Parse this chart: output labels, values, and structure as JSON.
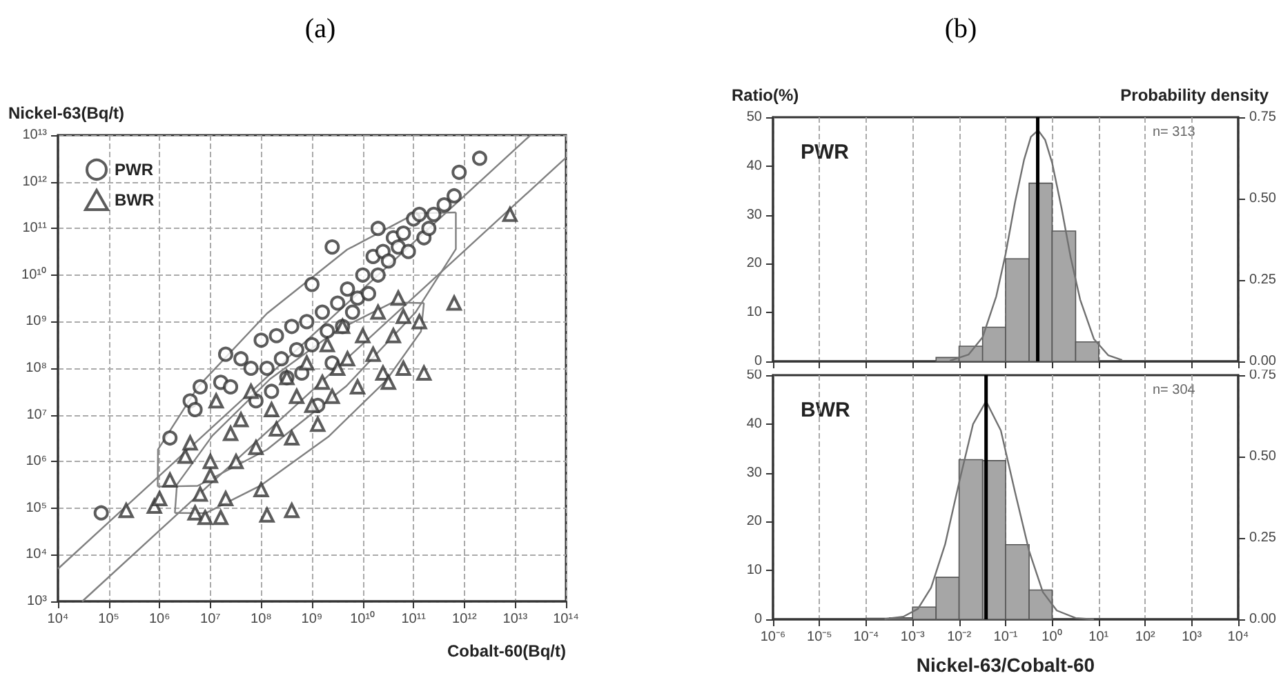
{
  "chart_data": [
    {
      "type": "scatter",
      "title": "(a)",
      "xlabel": "Cobalt-60(Bq/t)",
      "ylabel": "Nickel-63(Bq/t)",
      "log": "xy",
      "grid": true,
      "legend": "top left",
      "xlim": [
        10000.0,
        100000000000000.0
      ],
      "ylim": [
        1000.0,
        10000000000000.0
      ],
      "xticks": [
        {
          "value": 10000.0,
          "label": "10⁴"
        },
        {
          "value": 100000.0,
          "label": "10⁵"
        },
        {
          "value": 1000000.0,
          "label": "10⁶"
        },
        {
          "value": 10000000.0,
          "label": "10⁷"
        },
        {
          "value": 100000000.0,
          "label": "10⁸"
        },
        {
          "value": 1000000000.0,
          "label": "10⁹"
        },
        {
          "value": 10000000000.0,
          "label": "10¹⁰"
        },
        {
          "value": 100000000000.0,
          "label": "10¹¹"
        },
        {
          "value": 1000000000000.0,
          "label": "10¹²"
        },
        {
          "value": 10000000000000.0,
          "label": "10¹³"
        },
        {
          "value": 100000000000000.0,
          "label": "10¹⁴"
        }
      ],
      "yticks": [
        {
          "value": 1000.0,
          "label": "10³"
        },
        {
          "value": 10000.0,
          "label": "10⁴"
        },
        {
          "value": 100000.0,
          "label": "10⁵"
        },
        {
          "value": 1000000.0,
          "label": "10⁶"
        },
        {
          "value": 10000000.0,
          "label": "10⁷"
        },
        {
          "value": 100000000.0,
          "label": "10⁸"
        },
        {
          "value": 1000000000.0,
          "label": "10⁹"
        },
        {
          "value": 10000000000.0,
          "label": "10¹⁰"
        },
        {
          "value": 100000000000.0,
          "label": "10¹¹"
        },
        {
          "value": 1000000000000.0,
          "label": "10¹²"
        },
        {
          "value": 10000000000000.0,
          "label": "10¹³"
        }
      ],
      "series": [
        {
          "name": "PWR",
          "type": "scatter",
          "marker": "circle",
          "color": "#333333",
          "x": [
            71000.0,
            1600000.0,
            4000000.0,
            5000000.0,
            6300000.0,
            16000000.0,
            20000000.0,
            25000000.0,
            40000000.0,
            63000000.0,
            79000000.0,
            100000000.0,
            130000000.0,
            160000000.0,
            200000000.0,
            250000000.0,
            320000000.0,
            400000000.0,
            500000000.0,
            630000000.0,
            790000000.0,
            1000000000.0,
            1300000000.0,
            1600000000.0,
            2000000000.0,
            2500000000.0,
            3200000000.0,
            4000000000.0,
            5000000000.0,
            6300000000.0,
            7900000000.0,
            10000000000.0,
            13000000000.0,
            16000000000.0,
            20000000000.0,
            25000000000.0,
            32000000000.0,
            40000000000.0,
            50000000000.0,
            63000000000.0,
            79000000000.0,
            100000000000.0,
            130000000000.0,
            160000000000.0,
            200000000000.0,
            250000000000.0,
            400000000000.0,
            630000000000.0,
            790000000000.0,
            2000000000000.0,
            1000000000.0,
            20000000000.0,
            2500000000.0
          ],
          "values": [
            79000.0,
            3200000.0,
            20000000.0,
            13000000.0,
            40000000.0,
            50000000.0,
            200000000.0,
            40000000.0,
            160000000.0,
            100000000.0,
            20000000.0,
            400000000.0,
            100000000.0,
            32000000.0,
            500000000.0,
            160000000.0,
            63000000.0,
            790000000.0,
            250000000.0,
            79000000.0,
            1000000000.0,
            320000000.0,
            16000000.0,
            1600000000.0,
            630000000.0,
            130000000.0,
            2500000000.0,
            790000000.0,
            5000000000.0,
            1600000000.0,
            3200000000.0,
            10000000000.0,
            4000000000.0,
            25000000000.0,
            10000000000.0,
            32000000000.0,
            20000000000.0,
            63000000000.0,
            40000000000.0,
            79000000000.0,
            32000000000.0,
            160000000000.0,
            200000000000.0,
            63000000000.0,
            100000000000.0,
            200000000000.0,
            320000000000.0,
            500000000000.0,
            1600000000000.0,
            3200000000000.0,
            6300000000.0,
            100000000000.0,
            40000000000.0
          ]
        },
        {
          "name": "BWR",
          "type": "scatter",
          "marker": "triangle",
          "color": "#333333",
          "x": [
            220000.0,
            790000.0,
            1000000.0,
            1600000.0,
            3200000.0,
            4000000.0,
            5000000.0,
            6300000.0,
            7900000.0,
            10000000.0,
            10000000.0,
            13000000.0,
            16000000.0,
            20000000.0,
            25000000.0,
            32000000.0,
            40000000.0,
            63000000.0,
            79000000.0,
            100000000.0,
            130000000.0,
            160000000.0,
            200000000.0,
            320000000.0,
            400000000.0,
            400000000.0,
            500000000.0,
            790000000.0,
            1000000000.0,
            1300000000.0,
            1600000000.0,
            2000000000.0,
            2500000000.0,
            3200000000.0,
            4000000000.0,
            5000000000.0,
            7900000000.0,
            10000000000.0,
            16000000000.0,
            20000000000.0,
            25000000000.0,
            32000000000.0,
            40000000000.0,
            50000000000.0,
            63000000000.0,
            63000000000.0,
            130000000000.0,
            160000000000.0,
            630000000000.0,
            7900000000000.0
          ],
          "values": [
            89000.0,
            110000.0,
            160000.0,
            400000.0,
            1300000.0,
            2500000.0,
            79000.0,
            200000.0,
            63000.0,
            500000.0,
            1000000.0,
            20000000.0,
            63000.0,
            160000.0,
            4000000.0,
            1000000.0,
            7900000.0,
            32000000.0,
            2000000.0,
            250000.0,
            71000.0,
            13000000.0,
            5000000.0,
            63000000.0,
            89000.0,
            3200000.0,
            25000000.0,
            130000000.0,
            16000000.0,
            6300000.0,
            50000000.0,
            320000000.0,
            25000000.0,
            100000000.0,
            790000000.0,
            160000000.0,
            40000000.0,
            500000000.0,
            200000000.0,
            1600000000.0,
            79000000.0,
            50000000.0,
            500000000.0,
            3200000000.0,
            1300000000.0,
            100000000.0,
            1000000000.0,
            79000000.0,
            2500000000.0,
            200000000000.0
          ]
        },
        {
          "type": "line",
          "marker": "none",
          "color": "#808080",
          "x": [
            10000.0,
            20000000000000.0
          ],
          "values": [
            5000.0,
            10000000000000.0
          ]
        },
        {
          "type": "line",
          "marker": "none",
          "color": "#808080",
          "x": [
            30000.0,
            100000000000000.0
          ],
          "values": [
            1000.0,
            3300000000000.0
          ]
        },
        {
          "type": "line",
          "marker": "none",
          "color": "#808080",
          "x": [
            920000.0,
            930000.0,
            5700000.0,
            130000000.0,
            4900000000.0,
            110000000000.0,
            680000000000.0
          ],
          "values": [
            290000.0,
            1800000.0,
            40000000.0,
            1500000000.0,
            35000000000.0,
            210000000000.0,
            220000000000.0
          ]
        },
        {
          "type": "line",
          "marker": "none",
          "color": "#808080",
          "x": [
            920000.0,
            5600000.0,
            130000000.0,
            4800000000.0,
            110000000000.0,
            680000000000.0,
            680000000000.0
          ],
          "values": [
            290000.0,
            300000.0,
            1800000.0,
            42000000.0,
            1600000000.0,
            36000000000.0,
            220000000000.0
          ]
        },
        {
          "type": "line",
          "marker": "none",
          "color": "#808080",
          "x": [
            2000000.0,
            2200000.0,
            11000000.0,
            150000000.0,
            3100000000.0,
            39000000000.0,
            160000000000.0
          ],
          "values": [
            79000.0,
            320000.0,
            3600000.0,
            59000000.0,
            650000000.0,
            2600000000.0,
            2500000000.0
          ]
        },
        {
          "type": "line",
          "marker": "none",
          "color": "#808080",
          "x": [
            2000000.0,
            8100000.0,
            100000000.0,
            2100000000.0,
            29000000000.0,
            140000000000.0,
            160000000000.0
          ],
          "values": [
            79000.0,
            78000.0,
            310000.0,
            3400000.0,
            55000000.0,
            620000000.0,
            2500000000.0
          ]
        }
      ]
    },
    {
      "type": "histogram",
      "title": "(b)",
      "ylabel": "Ratio(%)",
      "y2label": "Probability density",
      "log": "x",
      "grid": "x",
      "tick_labels": "y",
      "xlim": [
        1e-06,
        10000.0
      ],
      "xticks": [
        {
          "value": 1e-06,
          "label": null
        },
        {
          "value": 1e-05,
          "label": null
        },
        {
          "value": 0.0001,
          "label": null
        },
        {
          "value": 0.001,
          "label": null
        },
        {
          "value": 0.01,
          "label": null
        },
        {
          "value": 0.1,
          "label": null
        },
        {
          "value": 1,
          "label": null
        },
        {
          "value": 10,
          "label": null
        },
        {
          "value": 100,
          "label": null
        },
        {
          "value": 1000,
          "label": null
        },
        {
          "value": 10000,
          "label": null
        }
      ],
      "ylim": [
        0,
        50
      ],
      "yticks": [
        0,
        10,
        20,
        30,
        40,
        50
      ],
      "y2lim": [
        0,
        0.75
      ],
      "y2ticks": [
        {
          "value": 0,
          "label": "0.00"
        },
        {
          "value": 0.25,
          "label": "0.25"
        },
        {
          "value": 0.5,
          "label": "0.50"
        },
        {
          "value": 0.75,
          "label": "0.75"
        }
      ],
      "series": [
        {
          "type": "histogram",
          "color": "#a6a6a6",
          "bins": [
            0.0032,
            0.01,
            0.032,
            0.1,
            0.32,
            1,
            3.2,
            10
          ],
          "values": [
            0.8,
            3.1,
            7.0,
            21.0,
            36.5,
            26.7,
            4.0
          ]
        },
        {
          "type": "line",
          "axis": "y2",
          "marker": "none",
          "color": "#707070",
          "x": [
            0.0063,
            0.016,
            0.032,
            0.063,
            0.1,
            0.16,
            0.25,
            0.35,
            0.5,
            0.71,
            1,
            1.6,
            2.5,
            4.0,
            7.9,
            16,
            32
          ],
          "values": [
            0.002,
            0.021,
            0.074,
            0.2,
            0.33,
            0.49,
            0.62,
            0.69,
            0.71,
            0.68,
            0.61,
            0.47,
            0.32,
            0.19,
            0.069,
            0.019,
            0.004
          ]
        }
      ],
      "ref_lines": [
        {
          "axis": "x",
          "value": 0.49,
          "color": "#000000"
        }
      ],
      "annotations": [
        "PWR",
        "n= 313"
      ]
    },
    {
      "type": "histogram",
      "xlabel": "Nickel-63/Cobalt-60",
      "log": "x",
      "grid": "x",
      "xlim": [
        1e-06,
        10000.0
      ],
      "xticks": [
        {
          "value": 1e-06,
          "label": "10⁻⁶"
        },
        {
          "value": 1e-05,
          "label": "10⁻⁵"
        },
        {
          "value": 0.0001,
          "label": "10⁻⁴"
        },
        {
          "value": 0.001,
          "label": "10⁻³"
        },
        {
          "value": 0.01,
          "label": "10⁻²"
        },
        {
          "value": 0.1,
          "label": "10⁻¹"
        },
        {
          "value": 1,
          "label": "10⁰"
        },
        {
          "value": 10,
          "label": "10¹"
        },
        {
          "value": 100,
          "label": "10²"
        },
        {
          "value": 1000,
          "label": "10³"
        },
        {
          "value": 10000,
          "label": "10⁴"
        }
      ],
      "ylim": [
        0,
        50
      ],
      "yticks": [
        0,
        10,
        20,
        30,
        40,
        50
      ],
      "y2lim": [
        0,
        0.75
      ],
      "y2ticks": [
        {
          "value": 0,
          "label": "0.00"
        },
        {
          "value": 0.25,
          "label": "0.25"
        },
        {
          "value": 0.5,
          "label": "0.50"
        },
        {
          "value": 0.75,
          "label": "0.75"
        }
      ],
      "series": [
        {
          "type": "histogram",
          "color": "#a6a6a6",
          "bins": [
            0.0001,
            0.00032,
            0.001,
            0.0032,
            0.01,
            0.032,
            0.1,
            0.32,
            1
          ],
          "values": [
            0.2,
            0.3,
            2.5,
            8.6,
            32.7,
            32.5,
            15.3,
            6.0
          ]
        },
        {
          "type": "line",
          "axis": "y2",
          "marker": "none",
          "color": "#707070",
          "x": [
            0.00025,
            0.00063,
            0.0013,
            0.0025,
            0.005,
            0.01,
            0.02,
            0.038,
            0.079,
            0.16,
            0.32,
            0.63,
            1.26,
            3.2,
            7.9
          ],
          "values": [
            0.001,
            0.008,
            0.032,
            0.097,
            0.23,
            0.42,
            0.6,
            0.67,
            0.58,
            0.39,
            0.21,
            0.084,
            0.027,
            0.004,
            0.0
          ]
        }
      ],
      "ref_lines": [
        {
          "axis": "x",
          "value": 0.038,
          "color": "#000000"
        }
      ],
      "annotations": [
        "BWR",
        "n= 304"
      ]
    }
  ]
}
